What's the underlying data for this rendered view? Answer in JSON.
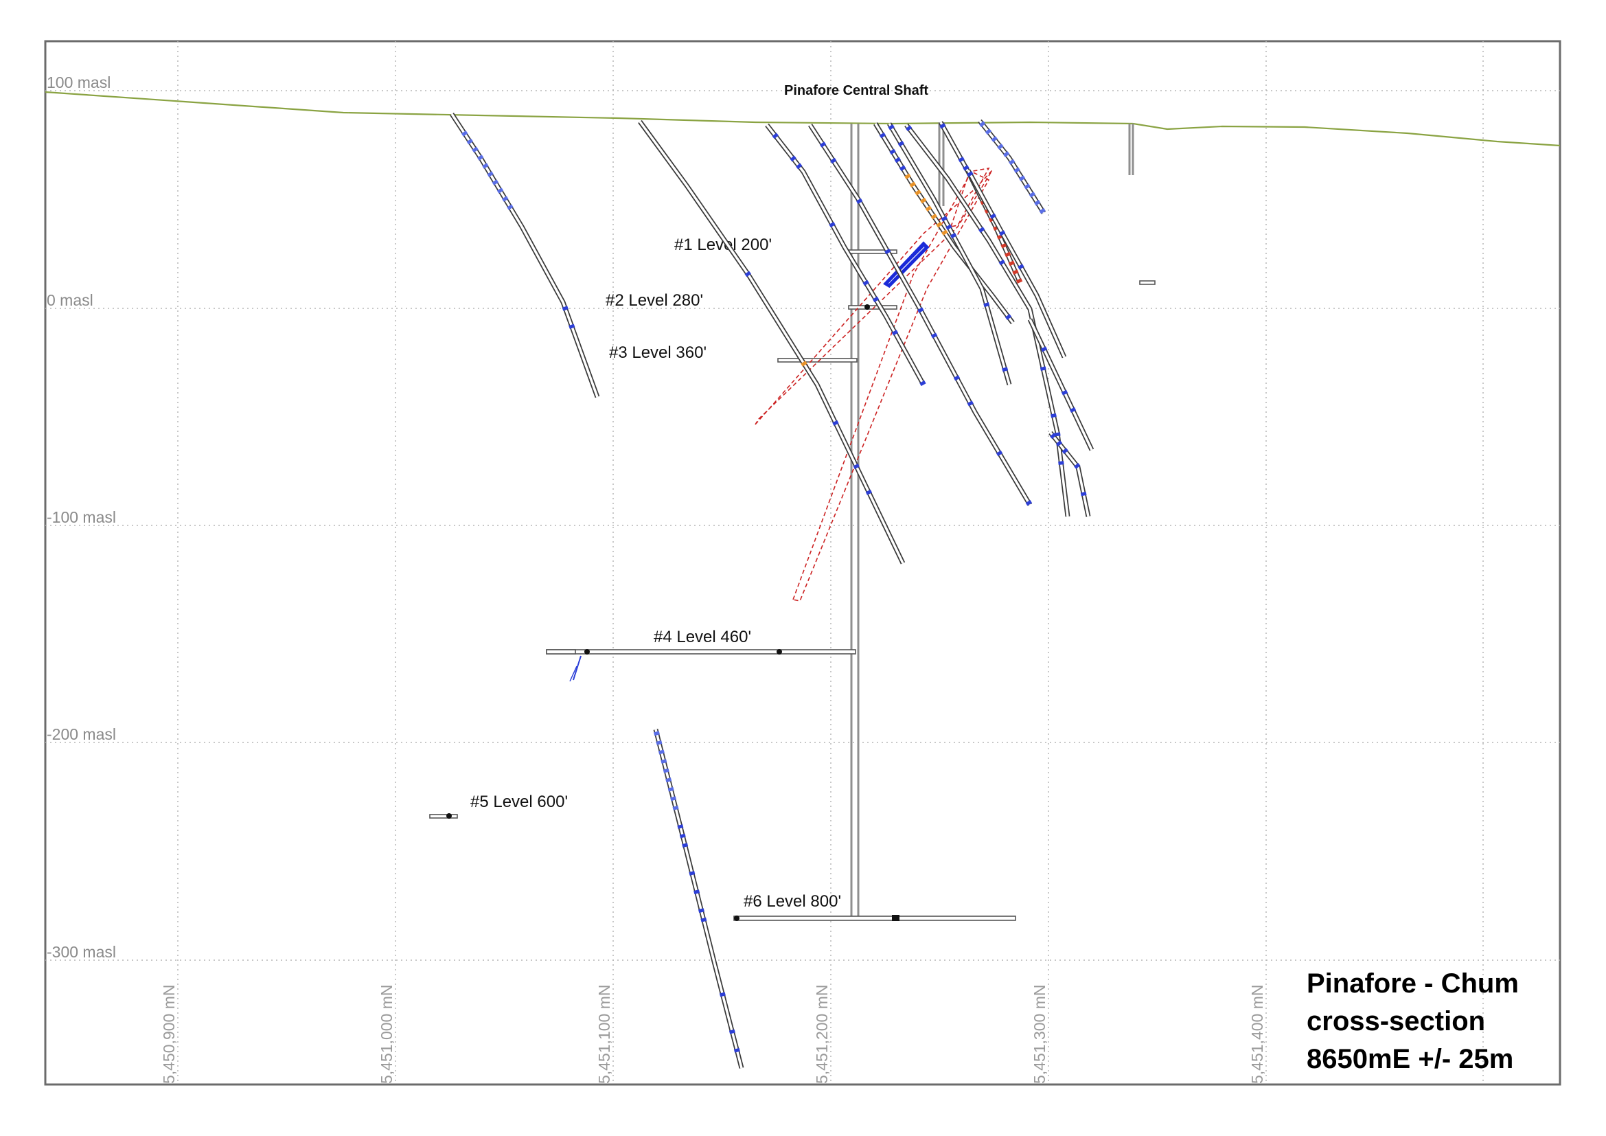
{
  "section": {
    "title_lines": [
      "Pinafore - Chum",
      "cross-section",
      "8650mE +/- 25m"
    ],
    "shaft_label": "Pinafore Central Shaft"
  },
  "elevation_labels": [
    "100 masl",
    "0 masl",
    "-100 masl",
    "-200 masl",
    "-300 masl"
  ],
  "northing_labels": [
    "5,450,900 mN",
    "5,451,000 mN",
    "5,451,100 mN",
    "5,451,200 mN",
    "5,451,300 mN",
    "5,451,400 mN"
  ],
  "levels": [
    {
      "name": "#1 Level 200'"
    },
    {
      "name": "#2 Level 280'"
    },
    {
      "name": "#3 Level 360'"
    },
    {
      "name": "#4 Level 460'"
    },
    {
      "name": "#5 Level 600'"
    },
    {
      "name": "#6 Level 800'"
    }
  ],
  "colors": {
    "topography": "#8aa342",
    "grid": "#b5b5b5",
    "frame": "#6b6b6b",
    "shaft": "#8f8f8f",
    "assay_low": "#5a6ee6",
    "assay_blue": "#2d3fd6",
    "assay_high": "#d23a2a",
    "assay_mid": "#e8932a",
    "wireframe": "#cc2222"
  }
}
